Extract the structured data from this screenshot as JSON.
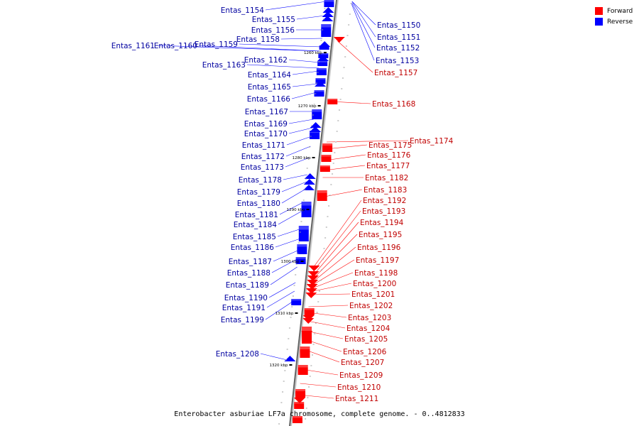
{
  "legend": {
    "forward_label": "Forward",
    "reverse_label": "Reverse",
    "forward_color": "#ff0000",
    "reverse_color": "#0000ff"
  },
  "title": "Enterobacter asburiae LF7a chromosome, complete genome. - 0..4812833",
  "axis_ticks": [
    "1260 kbp",
    "1270 kbp",
    "1280 kbp",
    "1290 kbp",
    "1300 kbp",
    "1310 kbp",
    "1320 kbp"
  ],
  "reverse_genes": [
    "Entas_1154",
    "Entas_1155",
    "Entas_1156",
    "Entas_1158",
    "Entas_1159",
    "Entas_1160",
    "Entas_1161",
    "Entas_1162",
    "Entas_1163",
    "Entas_1164",
    "Entas_1165",
    "Entas_1166",
    "Entas_1167",
    "Entas_1169",
    "Entas_1170",
    "Entas_1171",
    "Entas_1172",
    "Entas_1173",
    "Entas_1178",
    "Entas_1179",
    "Entas_1180",
    "Entas_1181",
    "Entas_1184",
    "Entas_1185",
    "Entas_1186",
    "Entas_1187",
    "Entas_1188",
    "Entas_1189",
    "Entas_1190",
    "Entas_1191",
    "Entas_1199",
    "Entas_1208"
  ],
  "reverse_right_genes": [
    "Entas_1150",
    "Entas_1151",
    "Entas_1152",
    "Entas_1153"
  ],
  "forward_genes": [
    "Entas_1157",
    "Entas_1168",
    "Entas_1174",
    "Entas_1175",
    "Entas_1176",
    "Entas_1177",
    "Entas_1182",
    "Entas_1183",
    "Entas_1192",
    "Entas_1193",
    "Entas_1194",
    "Entas_1195",
    "Entas_1196",
    "Entas_1197",
    "Entas_1198",
    "Entas_1200",
    "Entas_1201",
    "Entas_1202",
    "Entas_1203",
    "Entas_1204",
    "Entas_1205",
    "Entas_1206",
    "Entas_1207",
    "Entas_1209",
    "Entas_1210",
    "Entas_1211"
  ]
}
